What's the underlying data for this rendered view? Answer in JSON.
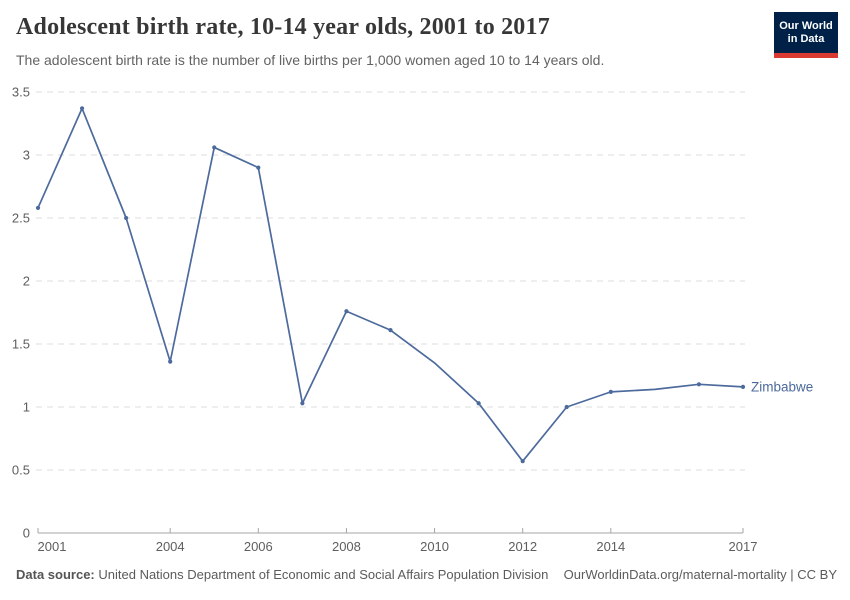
{
  "header": {
    "title": "Adolescent birth rate, 10-14 year olds, 2001 to 2017",
    "subtitle": "The adolescent birth rate is the number of live births per 1,000 women aged 10 to 14 years old.",
    "logo": {
      "line1": "Our World",
      "line2": "in Data",
      "bg_color": "#002147",
      "bar_color": "#d93b32"
    }
  },
  "footer": {
    "datasource_label": "Data source:",
    "datasource_text": "United Nations Department of Economic and Social Affairs Population Division",
    "link_text": "OurWorldinData.org/maternal-mortality | CC BY"
  },
  "chart_data": {
    "type": "line",
    "title": "Adolescent birth rate, 10-14 year olds, 2001 to 2017",
    "ylabel": "",
    "xlabel": "",
    "xlim": [
      2001,
      2017
    ],
    "ylim": [
      0,
      3.5
    ],
    "grid": "horizontal dashed",
    "legend_position": "end-of-line label",
    "x": [
      2001,
      2002,
      2003,
      2004,
      2005,
      2006,
      2007,
      2008,
      2009,
      2010,
      2011,
      2012,
      2013,
      2014,
      2015,
      2016,
      2017
    ],
    "series": [
      {
        "name": "Zimbabwe",
        "end_label": "Zimbabwe",
        "color": "#4c6a9c",
        "values": [
          2.58,
          3.37,
          2.5,
          1.36,
          3.06,
          2.9,
          1.03,
          1.76,
          1.61,
          1.35,
          1.03,
          0.57,
          1.0,
          1.12,
          1.14,
          1.18,
          1.16
        ],
        "no_marker_years": [
          2010,
          2015
        ]
      }
    ],
    "y_ticks": [
      {
        "value": 0,
        "label": "0"
      },
      {
        "value": 0.5,
        "label": "0.5"
      },
      {
        "value": 1,
        "label": "1"
      },
      {
        "value": 1.5,
        "label": "1.5"
      },
      {
        "value": 2,
        "label": "2"
      },
      {
        "value": 2.5,
        "label": "2.5"
      },
      {
        "value": 3,
        "label": "3"
      },
      {
        "value": 3.5,
        "label": "3.5"
      }
    ],
    "x_ticks": [
      {
        "value": 2001,
        "label": "2001"
      },
      {
        "value": 2004,
        "label": "2004"
      },
      {
        "value": 2006,
        "label": "2006"
      },
      {
        "value": 2008,
        "label": "2008"
      },
      {
        "value": 2010,
        "label": "2010"
      },
      {
        "value": 2012,
        "label": "2012"
      },
      {
        "value": 2014,
        "label": "2014"
      },
      {
        "value": 2017,
        "label": "2017"
      }
    ],
    "axis_color": "#a5a5a5",
    "grid_color": "#dcdcdc",
    "tick_label_color": "#5e5e5e"
  }
}
